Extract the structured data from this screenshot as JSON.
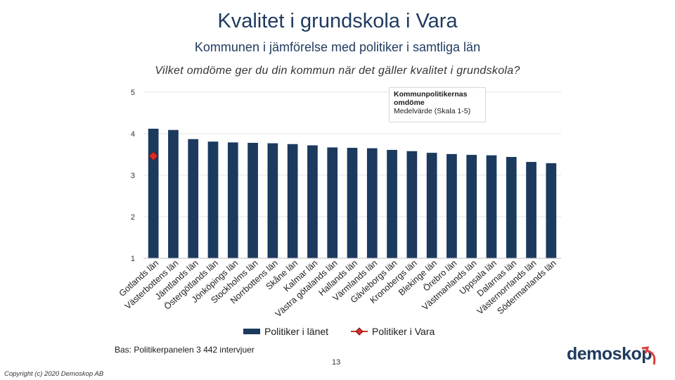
{
  "header": {
    "title": "Kvalitet i grundskola i Vara",
    "subtitle": "Kommunen i jämförelse med politiker i samtliga län",
    "question": "Vilket omdöme ger du din kommun när det gäller kvalitet i grundskola?"
  },
  "note": {
    "line1": "Kommunpolitikernas",
    "line2": "omdöme",
    "line3": "Medelvärde (Skala 1-5)"
  },
  "legend": {
    "bar_label": "Politiker i länet",
    "marker_label": "Politiker i Vara"
  },
  "footer": {
    "source": "Bas: Politikerpanelen 3 442 intervjuer",
    "page_number": "13",
    "copyright": "Copyright (c) 2020 Demoskop AB",
    "logo_text": "demoskop"
  },
  "colors": {
    "bar": "#1b3a5e",
    "marker": "#d32f2f",
    "grid": "#e3e3e3"
  },
  "chart_data": {
    "type": "bar",
    "categories": [
      "Gotlands län",
      "Västerbottens län",
      "Jämtlands län",
      "Östergötlands län",
      "Jönköpings län",
      "Stockholms län",
      "Norrbottens län",
      "Skåne län",
      "Kalmar län",
      "Västra götalands län",
      "Hallands län",
      "Värmlands län",
      "Gävleborgs län",
      "Kronobergs län",
      "Blekinge län",
      "Örebro län",
      "Västmanlands län",
      "Uppsala län",
      "Dalarnas län",
      "Västernorrlands län",
      "Södermanlands län"
    ],
    "series": [
      {
        "name": "Politiker i länet",
        "type": "bar",
        "values": [
          4.12,
          4.09,
          3.87,
          3.81,
          3.79,
          3.78,
          3.77,
          3.75,
          3.72,
          3.67,
          3.66,
          3.65,
          3.61,
          3.58,
          3.54,
          3.51,
          3.49,
          3.48,
          3.44,
          3.32,
          3.29
        ]
      },
      {
        "name": "Politiker i Vara",
        "type": "marker",
        "category_index": 0,
        "value": 3.46
      }
    ],
    "yticks": [
      "1",
      "2",
      "3",
      "4",
      "5"
    ],
    "ylim": [
      1,
      5
    ],
    "grid": true,
    "legend_position": "bottom"
  }
}
